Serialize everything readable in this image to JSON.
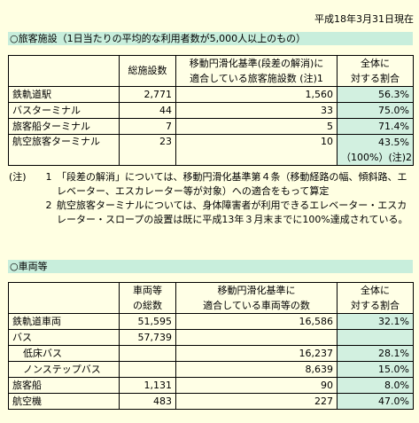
{
  "date": "平成18年3月31日現在",
  "facilities": {
    "title": "○旅客施設（1日当たりの平均的な利用者数が5,000人以上のもの）",
    "headers": {
      "count": "総施設数",
      "compliant_l1": "移動円滑化基準(段差の解消)に",
      "compliant_l2": "適合している旅客施設数 (注)1",
      "ratio_l1": "全体に",
      "ratio_l2": "対する割合"
    },
    "rows": [
      {
        "name": "鉄軌道駅",
        "count": "2,771",
        "compliant": "1,560",
        "ratio": "56.3%"
      },
      {
        "name": "バスターミナル",
        "count": "44",
        "compliant": "33",
        "ratio": "75.0%"
      },
      {
        "name": "旅客船ターミナル",
        "count": "7",
        "compliant": "5",
        "ratio": "71.4%"
      },
      {
        "name": "航空旅客ターミナル",
        "count": "23",
        "compliant": "10",
        "ratio": "43.5%"
      }
    ],
    "extra_ratio": "（100%）(注)2"
  },
  "notes": {
    "label": "(注)",
    "items": [
      {
        "num": "1",
        "text": "「段差の解消」については、移動円滑化基準第４条（移動経路の幅、傾斜路、エレベーター、エスカレーター等が対象）への適合をもって算定"
      },
      {
        "num": "2",
        "text": "航空旅客ターミナルについては、身体障害者が利用できるエレベーター・エスカレーター・スロープの設置は既に平成13年３月末までに100%達成されている。"
      }
    ]
  },
  "vehicles": {
    "title": "○車両等",
    "headers": {
      "total_l1": "車両等",
      "total_l2": "の総数",
      "compliant_l1": "移動円滑化基準に",
      "compliant_l2": "適合している車両等の数",
      "ratio_l1": "全体に",
      "ratio_l2": "対する割合"
    },
    "rows": [
      {
        "name": "鉄軌道車両",
        "total": "51,595",
        "compliant": "16,586",
        "ratio": "32.1%"
      },
      {
        "name": "バス",
        "total": "57,739",
        "compliant": "",
        "ratio": ""
      },
      {
        "name": "低床バス",
        "total": "",
        "compliant": "16,237",
        "ratio": "28.1%"
      },
      {
        "name": "ノンステップバス",
        "total": "",
        "compliant": "8,639",
        "ratio": "15.0%"
      },
      {
        "name": "旅客船",
        "total": "1,131",
        "compliant": "90",
        "ratio": "8.0%"
      },
      {
        "name": "航空機",
        "total": "483",
        "compliant": "227",
        "ratio": "47.0%"
      }
    ]
  }
}
